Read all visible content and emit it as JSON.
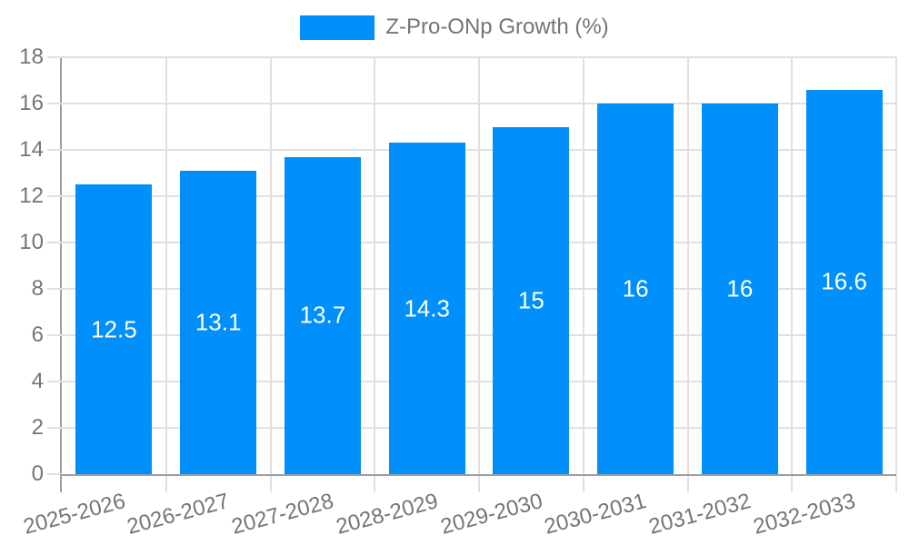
{
  "chart_data": {
    "type": "bar",
    "title": "Z-Pro-ONp Growth (%)",
    "legend": {
      "position": "top",
      "label": "Z-Pro-ONp Growth (%)",
      "swatch_color": "#008FFB"
    },
    "categories": [
      "2025-2026",
      "2026-2027",
      "2027-2028",
      "2028-2029",
      "2029-2030",
      "2030-2031",
      "2031-2032",
      "2032-2033"
    ],
    "values": [
      12.5,
      13.1,
      13.7,
      14.3,
      15,
      16,
      16,
      16.6
    ],
    "value_labels": [
      "12.5",
      "13.1",
      "13.7",
      "14.3",
      "15",
      "16",
      "16",
      "16.6"
    ],
    "xlabel": "",
    "ylabel": "",
    "ylim": [
      0,
      18
    ],
    "yticks": [
      0,
      2,
      4,
      6,
      8,
      10,
      12,
      14,
      16,
      18
    ],
    "grid": true,
    "colors": {
      "bar": "#008FFB",
      "value_label": "#ffffff",
      "axis_text": "#757575",
      "grid": "#e0e0e0",
      "axis_line": "#9e9e9e",
      "background": "#ffffff"
    }
  }
}
